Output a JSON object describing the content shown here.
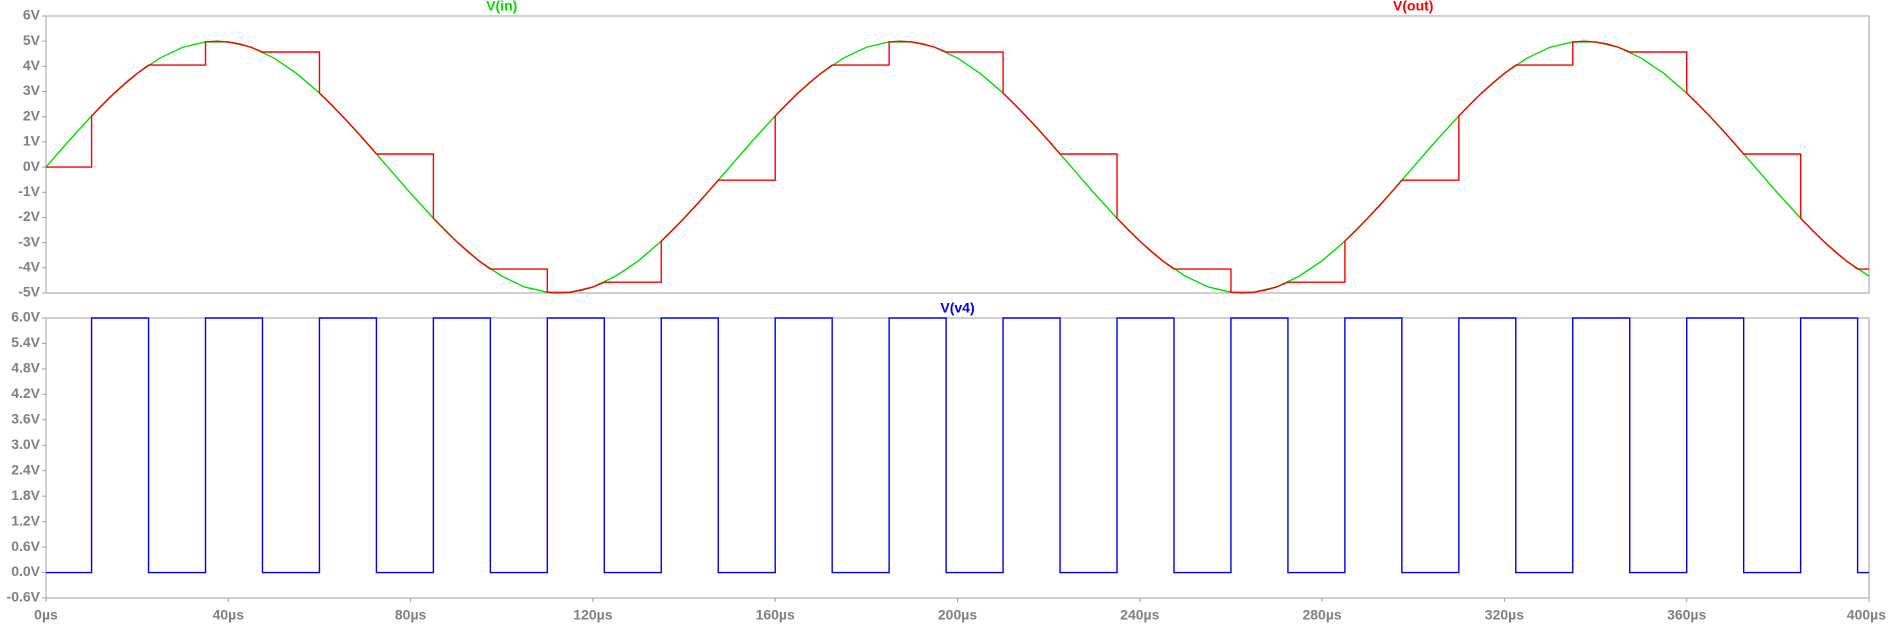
{
  "chart_data": [
    {
      "type": "line",
      "xlim": [
        0,
        400
      ],
      "ylim": [
        -5,
        6
      ],
      "yticks": [
        {
          "value": -5,
          "label": "-5V"
        },
        {
          "value": -4,
          "label": "-4V"
        },
        {
          "value": -3,
          "label": "-3V"
        },
        {
          "value": -2,
          "label": "-2V"
        },
        {
          "value": -1,
          "label": "-1V"
        },
        {
          "value": 0,
          "label": "0V"
        },
        {
          "value": 1,
          "label": "1V"
        },
        {
          "value": 2,
          "label": "2V"
        },
        {
          "value": 3,
          "label": "3V"
        },
        {
          "value": 4,
          "label": "4V"
        },
        {
          "value": 5,
          "label": "5V"
        },
        {
          "value": 6,
          "label": "6V"
        }
      ],
      "grid": false,
      "series": [
        {
          "name": "V(in)",
          "color": "#00dd00",
          "x": [
            0,
            5,
            10,
            15,
            20,
            25,
            30,
            35,
            40,
            45,
            50,
            55,
            60,
            65,
            70,
            75,
            80,
            85,
            90,
            95,
            100,
            105,
            110,
            115,
            120,
            125,
            130,
            135,
            140,
            145,
            150,
            155,
            160,
            165,
            170,
            175,
            180,
            185,
            190,
            195,
            200,
            205,
            210,
            215,
            220,
            225,
            230,
            235,
            240,
            245,
            250,
            255,
            260,
            265,
            270,
            275,
            280,
            285,
            290,
            295,
            300,
            305,
            310,
            315,
            320,
            325,
            330,
            335,
            340,
            345,
            350,
            355,
            360,
            365,
            370,
            375,
            380,
            385,
            390,
            395,
            400
          ],
          "values": [
            0,
            1.04,
            2.03,
            2.94,
            3.72,
            4.33,
            4.76,
            4.97,
            4.97,
            4.76,
            4.33,
            3.72,
            2.94,
            2.03,
            1.04,
            0,
            -1.04,
            -2.03,
            -2.94,
            -3.72,
            -4.33,
            -4.76,
            -4.97,
            -4.97,
            -4.76,
            -4.33,
            -3.72,
            -2.94,
            -2.03,
            -1.04,
            0,
            1.04,
            2.03,
            2.94,
            3.72,
            4.33,
            4.76,
            4.97,
            4.97,
            4.76,
            4.33,
            3.72,
            2.94,
            2.03,
            1.04,
            0,
            -1.04,
            -2.03,
            -2.94,
            -3.72,
            -4.33,
            -4.76,
            -4.97,
            -4.97,
            -4.76,
            -4.33,
            -3.72,
            -2.94,
            -2.03,
            -1.04,
            0,
            1.04,
            2.03,
            2.94,
            3.72,
            4.33,
            4.76,
            4.97,
            4.97,
            4.76,
            4.33,
            3.72,
            2.94,
            2.03,
            1.04,
            0,
            -1.04,
            -2.03,
            -2.94,
            -3.72,
            -4.33
          ]
        },
        {
          "name": "V(out)",
          "color": "#ff0000",
          "x": [
            0,
            10,
            10,
            12.5,
            15,
            17.5,
            20,
            22.5,
            35,
            35,
            37.5,
            40,
            42.5,
            45,
            47.5,
            60,
            60,
            62.5,
            65,
            67.5,
            70,
            72.5,
            85,
            85,
            87.5,
            90,
            92.5,
            95,
            97.5,
            110,
            110,
            112.5,
            115,
            117.5,
            120,
            122.5,
            135,
            135,
            137.5,
            140,
            142.5,
            145,
            147.5,
            160,
            160,
            162.5,
            165,
            167.5,
            170,
            172.5,
            185,
            185,
            187.5,
            190,
            192.5,
            195,
            197.5,
            210,
            210,
            212.5,
            215,
            217.5,
            220,
            222.5,
            235,
            235,
            237.5,
            240,
            242.5,
            245,
            247.5,
            260,
            260,
            262.5,
            265,
            267.5,
            270,
            272.5,
            285,
            285,
            287.5,
            290,
            292.5,
            295,
            297.5,
            310,
            310,
            312.5,
            315,
            317.5,
            320,
            322.5,
            335,
            335,
            337.5,
            340,
            342.5,
            345,
            347.5,
            360,
            360,
            362.5,
            365,
            367.5,
            370,
            372.5,
            385,
            385,
            387.5,
            390,
            392.5,
            395,
            397.5,
            400
          ],
          "values": [
            0,
            0,
            2.03,
            2.5,
            2.94,
            3.35,
            3.72,
            4.05,
            4.05,
            4.97,
            5,
            4.97,
            4.89,
            4.76,
            4.57,
            4.57,
            2.94,
            2.5,
            2.03,
            1.55,
            1.04,
            0.52,
            0.52,
            -2.03,
            -2.5,
            -2.94,
            -3.35,
            -3.72,
            -4.05,
            -4.05,
            -4.97,
            -5,
            -4.97,
            -4.89,
            -4.76,
            -4.57,
            -4.57,
            -2.94,
            -2.5,
            -2.03,
            -1.55,
            -1.04,
            -0.52,
            -0.52,
            2.03,
            2.5,
            2.94,
            3.35,
            3.72,
            4.05,
            4.05,
            4.97,
            5,
            4.97,
            4.89,
            4.76,
            4.57,
            4.57,
            2.94,
            2.5,
            2.03,
            1.55,
            1.04,
            0.52,
            0.52,
            -2.03,
            -2.5,
            -2.94,
            -3.35,
            -3.72,
            -4.05,
            -4.05,
            -4.97,
            -5,
            -4.97,
            -4.89,
            -4.76,
            -4.57,
            -4.57,
            -2.94,
            -2.5,
            -2.03,
            -1.55,
            -1.04,
            -0.52,
            -0.52,
            2.03,
            2.5,
            2.94,
            3.35,
            3.72,
            4.05,
            4.05,
            4.97,
            5,
            4.97,
            4.89,
            4.76,
            4.57,
            4.57,
            2.94,
            2.5,
            2.03,
            1.55,
            1.04,
            0.52,
            0.52,
            -2.03,
            -2.5,
            -2.94,
            -3.35,
            -3.72,
            -4.05,
            -4.05
          ]
        }
      ]
    },
    {
      "type": "line",
      "xlim": [
        0,
        400
      ],
      "xticks": [
        {
          "value": 0,
          "label": "0µs"
        },
        {
          "value": 40,
          "label": "40µs"
        },
        {
          "value": 80,
          "label": "80µs"
        },
        {
          "value": 120,
          "label": "120µs"
        },
        {
          "value": 160,
          "label": "160µs"
        },
        {
          "value": 200,
          "label": "200µs"
        },
        {
          "value": 240,
          "label": "240µs"
        },
        {
          "value": 280,
          "label": "280µs"
        },
        {
          "value": 320,
          "label": "320µs"
        },
        {
          "value": 360,
          "label": "360µs"
        },
        {
          "value": 400,
          "label": "400µs"
        }
      ],
      "ylim": [
        -0.6,
        6.0
      ],
      "yticks": [
        {
          "value": -0.6,
          "label": "-0.6V"
        },
        {
          "value": 0,
          "label": "0.0V"
        },
        {
          "value": 0.6,
          "label": "0.6V"
        },
        {
          "value": 1.2,
          "label": "1.2V"
        },
        {
          "value": 1.8,
          "label": "1.8V"
        },
        {
          "value": 2.4,
          "label": "2.4V"
        },
        {
          "value": 3.0,
          "label": "3.0V"
        },
        {
          "value": 3.6,
          "label": "3.6V"
        },
        {
          "value": 4.2,
          "label": "4.2V"
        },
        {
          "value": 4.8,
          "label": "4.8V"
        },
        {
          "value": 5.4,
          "label": "5.4V"
        },
        {
          "value": 6.0,
          "label": "6.0V"
        }
      ],
      "grid": false,
      "series": [
        {
          "name": "V(v4)",
          "color": "#0000ee",
          "x": [
            0,
            10,
            10,
            22.5,
            22.5,
            35,
            35,
            47.5,
            47.5,
            60,
            60,
            72.5,
            72.5,
            85,
            85,
            97.5,
            97.5,
            110,
            110,
            122.5,
            122.5,
            135,
            135,
            147.5,
            147.5,
            160,
            160,
            172.5,
            172.5,
            185,
            185,
            197.5,
            197.5,
            210,
            210,
            222.5,
            222.5,
            235,
            235,
            247.5,
            247.5,
            260,
            260,
            272.5,
            272.5,
            285,
            285,
            297.5,
            297.5,
            310,
            310,
            322.5,
            322.5,
            335,
            335,
            347.5,
            347.5,
            360,
            360,
            372.5,
            372.5,
            385,
            385,
            397.5,
            397.5,
            400
          ],
          "values": [
            0,
            0,
            6,
            6,
            0,
            0,
            6,
            6,
            0,
            0,
            6,
            6,
            0,
            0,
            6,
            6,
            0,
            0,
            6,
            6,
            0,
            0,
            6,
            6,
            0,
            0,
            6,
            6,
            0,
            0,
            6,
            6,
            0,
            0,
            6,
            6,
            0,
            0,
            6,
            6,
            0,
            0,
            6,
            6,
            0,
            0,
            6,
            6,
            0,
            0,
            6,
            6,
            0,
            0,
            6,
            6,
            0,
            0,
            6,
            6,
            0,
            0,
            6,
            6,
            0,
            0
          ]
        }
      ]
    }
  ]
}
